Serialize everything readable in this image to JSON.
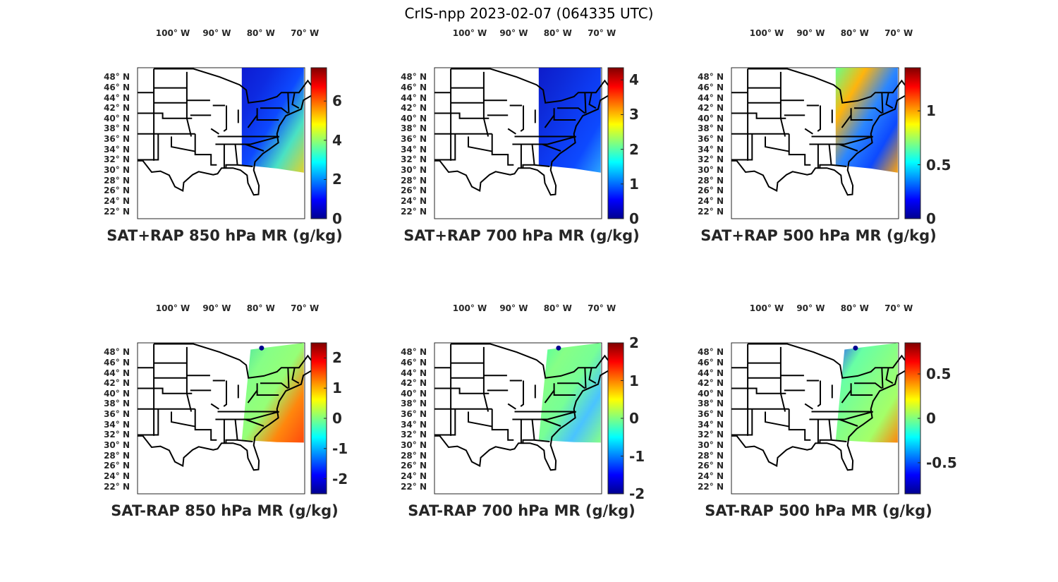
{
  "figure_title": "CrIS-npp 2023-02-07 (064335 UTC)",
  "lon_labels": [
    "100° W",
    "90° W",
    "80° W",
    "70° W"
  ],
  "lat_labels": [
    "48° N",
    "46° N",
    "44° N",
    "42° N",
    "40° N",
    "38° N",
    "36° N",
    "34° N",
    "32° N",
    "30° N",
    "28° N",
    "26° N",
    "24° N",
    "22° N"
  ],
  "colors": {
    "jet": [
      "#00008f",
      "#0000ff",
      "#0080ff",
      "#00ffff",
      "#80ff80",
      "#ffff00",
      "#ff8000",
      "#ff0000",
      "#800000"
    ]
  },
  "chart_data": [
    {
      "type": "heatmap",
      "title": "SAT+RAP 850 hPa MR (g/kg)",
      "clim": [
        0,
        7.7
      ],
      "ticks": [
        "0",
        "2",
        "4",
        "6"
      ],
      "tickvals": [
        0,
        2,
        4,
        6
      ],
      "kind": "sum"
    },
    {
      "type": "heatmap",
      "title": "SAT+RAP 700 hPa MR (g/kg)",
      "clim": [
        0,
        4.35
      ],
      "ticks": [
        "0",
        "1",
        "2",
        "3",
        "4"
      ],
      "tickvals": [
        0,
        1,
        2,
        3,
        4
      ],
      "kind": "sum"
    },
    {
      "type": "heatmap",
      "title": "SAT+RAP 500 hPa MR (g/kg)",
      "clim": [
        0,
        1.4
      ],
      "ticks": [
        "0",
        "0.5",
        "1"
      ],
      "tickvals": [
        0,
        0.5,
        1
      ],
      "kind": "sum"
    },
    {
      "type": "heatmap",
      "title": "SAT-RAP 850 hPa MR (g/kg)",
      "clim": [
        -2.5,
        2.5
      ],
      "ticks": [
        "-2",
        "-1",
        "0",
        "1",
        "2"
      ],
      "tickvals": [
        -2,
        -1,
        0,
        1,
        2
      ],
      "kind": "diff"
    },
    {
      "type": "heatmap",
      "title": "SAT-RAP 700 hPa MR (g/kg)",
      "clim": [
        -2,
        2
      ],
      "ticks": [
        "-2",
        "-1",
        "0",
        "1",
        "2"
      ],
      "tickvals": [
        -2,
        -1,
        0,
        1,
        2
      ],
      "kind": "diff"
    },
    {
      "type": "heatmap",
      "title": "SAT-RAP 500 hPa MR (g/kg)",
      "clim": [
        -0.85,
        0.85
      ],
      "ticks": [
        "-0.5",
        "0",
        "0.5"
      ],
      "tickvals": [
        -0.5,
        0,
        0.5
      ],
      "kind": "diff"
    }
  ]
}
